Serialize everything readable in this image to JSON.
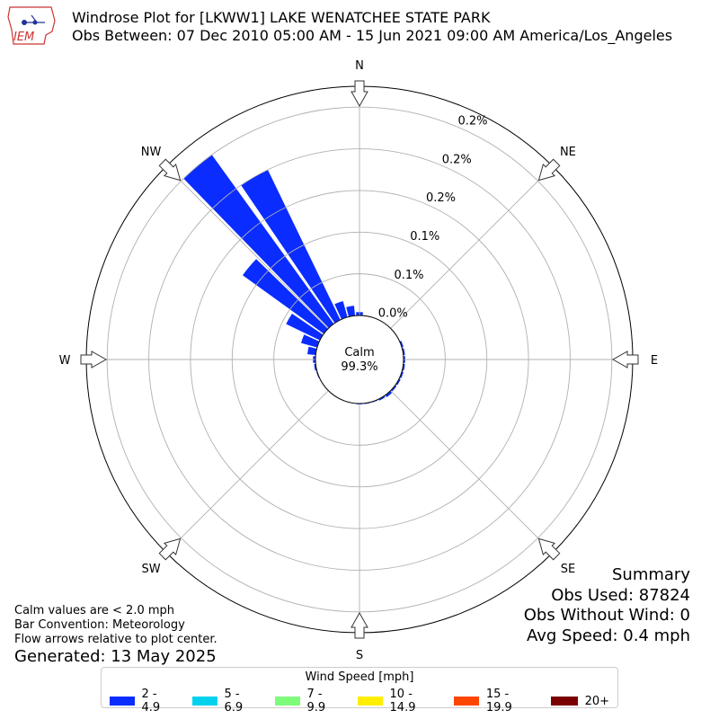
{
  "header": {
    "line1": "Windrose Plot for [LKWW1] LAKE WENATCHEE STATE PARK",
    "line2": "Obs Between: 07 Dec 2010 05:00 AM - 15 Jun 2021 09:00 AM America/Los_Angeles"
  },
  "logo": {
    "text": "IEM"
  },
  "footer": {
    "calm_note": "Calm values are < 2.0 mph",
    "bar_convention": "Bar Convention: Meteorology",
    "flow_note": "Flow arrows relative to plot center.",
    "generated": "Generated: 13 May 2025"
  },
  "summary": {
    "title": "Summary",
    "obs_used": "Obs Used: 87824",
    "obs_without_wind": "Obs Without Wind: 0",
    "avg_speed": "Avg Speed: 0.4 mph"
  },
  "legend": {
    "title": "Wind Speed [mph]",
    "items": [
      {
        "label": "2 - 4.9",
        "color": "#0a2cff"
      },
      {
        "label": "5 - 6.9",
        "color": "#00d2ee"
      },
      {
        "label": "7 - 9.9",
        "color": "#7dfc7c"
      },
      {
        "label": "10 - 14.9",
        "color": "#ffee00"
      },
      {
        "label": "15 - 19.9",
        "color": "#ff4600"
      },
      {
        "label": "20+",
        "color": "#7a0000"
      }
    ]
  },
  "chart_data": {
    "type": "windrose",
    "calm_label": "Calm",
    "calm_value": "99.3%",
    "directions": [
      "N",
      "NE",
      "E",
      "SE",
      "S",
      "SW",
      "W",
      "NW"
    ],
    "ring_labels": [
      "0.0%",
      "0.1%",
      "0.1%",
      "0.2%",
      "0.2%",
      "0.2%"
    ],
    "ring_values": [
      0.0,
      0.05,
      0.1,
      0.15,
      0.2,
      0.25
    ],
    "rmax": 0.275,
    "series_name": "2 - 4.9",
    "bars": [
      {
        "dir": 0,
        "value": 0.004
      },
      {
        "dir": 10,
        "value": 0.0
      },
      {
        "dir": 20,
        "value": 0.0
      },
      {
        "dir": 30,
        "value": 0.0
      },
      {
        "dir": 40,
        "value": 0.0
      },
      {
        "dir": 50,
        "value": 0.0
      },
      {
        "dir": 60,
        "value": 0.0
      },
      {
        "dir": 70,
        "value": 0.002
      },
      {
        "dir": 80,
        "value": 0.002
      },
      {
        "dir": 90,
        "value": 0.002
      },
      {
        "dir": 100,
        "value": 0.002
      },
      {
        "dir": 110,
        "value": 0.002
      },
      {
        "dir": 120,
        "value": 0.002
      },
      {
        "dir": 130,
        "value": 0.002
      },
      {
        "dir": 140,
        "value": 0.003
      },
      {
        "dir": 150,
        "value": 0.002
      },
      {
        "dir": 160,
        "value": 0.001
      },
      {
        "dir": 170,
        "value": 0.001
      },
      {
        "dir": 180,
        "value": 0.001
      },
      {
        "dir": 190,
        "value": 0.0
      },
      {
        "dir": 200,
        "value": 0.0
      },
      {
        "dir": 210,
        "value": 0.0
      },
      {
        "dir": 220,
        "value": 0.0
      },
      {
        "dir": 230,
        "value": 0.0
      },
      {
        "dir": 240,
        "value": 0.0
      },
      {
        "dir": 250,
        "value": 0.001
      },
      {
        "dir": 260,
        "value": 0.002
      },
      {
        "dir": 270,
        "value": 0.003
      },
      {
        "dir": 280,
        "value": 0.01
      },
      {
        "dir": 290,
        "value": 0.02
      },
      {
        "dir": 300,
        "value": 0.045
      },
      {
        "dir": 310,
        "value": 0.12
      },
      {
        "dir": 320,
        "value": 0.25
      },
      {
        "dir": 330,
        "value": 0.2
      },
      {
        "dir": 340,
        "value": 0.02
      },
      {
        "dir": 350,
        "value": 0.012
      }
    ]
  }
}
